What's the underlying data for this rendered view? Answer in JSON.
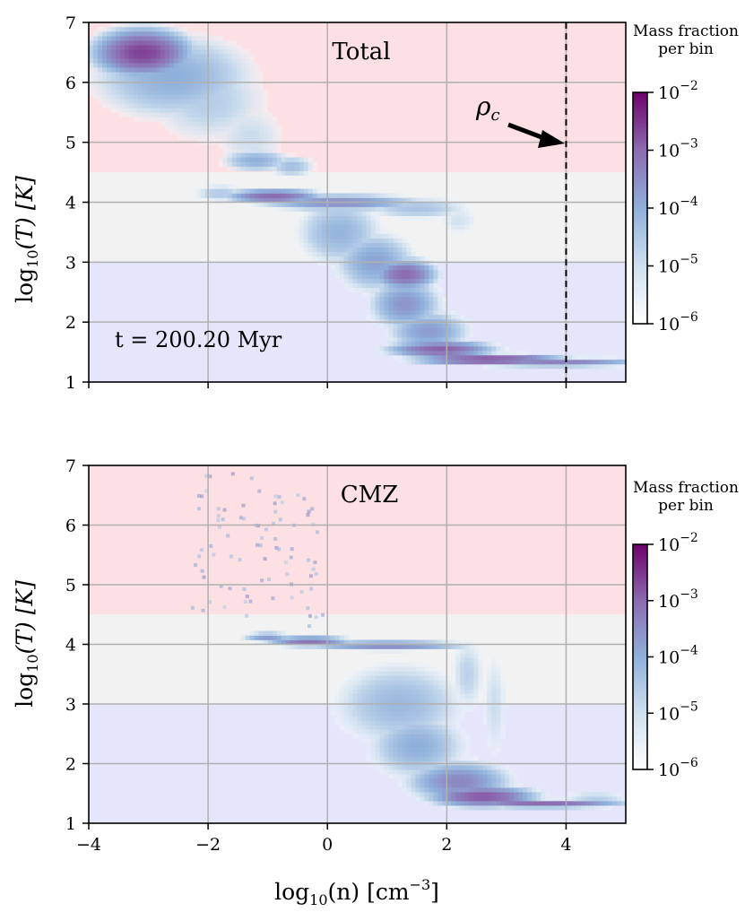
{
  "figure": {
    "xlabel_base": "log",
    "xlabel_sub": "10",
    "xlabel_var": "(n) [cm",
    "xlabel_exp": "−3",
    "xlabel_end": "]",
    "ylabel_base": "log",
    "ylabel_sub": "10",
    "ylabel_var": "(T) [K]",
    "rho_label": "ρ",
    "rho_sub": "c",
    "time_label": "t = 200.20 Myr",
    "colorbar": {
      "title_line1": "Mass fraction",
      "title_line2": "per bin",
      "tick_base": "10",
      "tick_exps": [
        "−2",
        "−3",
        "−4",
        "−5",
        "−6"
      ],
      "colors": [
        "#ffffff",
        "#cfe0ef",
        "#8fb0db",
        "#8c6bb1",
        "#6e016b"
      ]
    },
    "bands": [
      {
        "name": "hot",
        "ymin": 4.5,
        "ymax": 7,
        "color": "#fde0e3"
      },
      {
        "name": "warm",
        "ymin": 3,
        "ymax": 4.5,
        "color": "#f2f2f2"
      },
      {
        "name": "cold",
        "ymin": 1,
        "ymax": 3,
        "color": "#e5e5fb"
      }
    ]
  },
  "chart_data": [
    {
      "type": "heatmap",
      "title": "Total",
      "xlim": [
        -4,
        5
      ],
      "ylim": [
        1,
        7
      ],
      "xticks": [
        -4,
        -2,
        0,
        2,
        4
      ],
      "yticks": [
        1,
        2,
        3,
        4,
        5,
        6,
        7
      ],
      "xtick_labels": [
        "−4",
        "−2",
        "0",
        "2",
        "4"
      ],
      "ytick_labels": [
        "1",
        "2",
        "3",
        "4",
        "5",
        "6",
        "7"
      ],
      "vline_x": 4,
      "color_scale": "log",
      "clim": [
        1e-06,
        0.01
      ],
      "blobs": [
        {
          "x": -3.1,
          "y": 6.5,
          "sx": 0.45,
          "sy": 0.22,
          "v": -2.6
        },
        {
          "x": -2.6,
          "y": 6.1,
          "sx": 0.85,
          "sy": 0.45,
          "v": -4.0
        },
        {
          "x": -2.0,
          "y": 5.7,
          "sx": 0.7,
          "sy": 0.5,
          "v": -4.6
        },
        {
          "x": -1.3,
          "y": 5.1,
          "sx": 0.45,
          "sy": 0.4,
          "v": -4.9
        },
        {
          "x": -1.2,
          "y": 4.7,
          "sx": 0.35,
          "sy": 0.12,
          "v": -4.0
        },
        {
          "x": -0.6,
          "y": 4.6,
          "sx": 0.25,
          "sy": 0.12,
          "v": -4.3
        },
        {
          "x": -1.8,
          "y": 4.15,
          "sx": 0.3,
          "sy": 0.1,
          "v": -4.5
        },
        {
          "x": -0.9,
          "y": 4.1,
          "sx": 0.45,
          "sy": 0.07,
          "v": -3.0
        },
        {
          "x": 0.2,
          "y": 4.0,
          "sx": 0.8,
          "sy": 0.08,
          "v": -3.5
        },
        {
          "x": 1.5,
          "y": 3.9,
          "sx": 0.6,
          "sy": 0.12,
          "v": -4.4
        },
        {
          "x": 2.2,
          "y": 3.7,
          "sx": 0.25,
          "sy": 0.2,
          "v": -5.0
        },
        {
          "x": 0.2,
          "y": 3.5,
          "sx": 0.45,
          "sy": 0.35,
          "v": -4.1
        },
        {
          "x": 0.8,
          "y": 3.0,
          "sx": 0.4,
          "sy": 0.3,
          "v": -3.8
        },
        {
          "x": 1.3,
          "y": 2.8,
          "sx": 0.3,
          "sy": 0.15,
          "v": -3.0
        },
        {
          "x": 1.3,
          "y": 2.3,
          "sx": 0.35,
          "sy": 0.25,
          "v": -3.6
        },
        {
          "x": 1.7,
          "y": 1.85,
          "sx": 0.4,
          "sy": 0.2,
          "v": -3.7
        },
        {
          "x": 1.9,
          "y": 1.55,
          "sx": 0.5,
          "sy": 0.08,
          "v": -2.9
        },
        {
          "x": 2.7,
          "y": 1.38,
          "sx": 0.7,
          "sy": 0.05,
          "v": -2.7
        },
        {
          "x": 3.8,
          "y": 1.32,
          "sx": 0.9,
          "sy": 0.035,
          "v": -3.2
        },
        {
          "x": 4.5,
          "y": 1.35,
          "sx": 0.5,
          "sy": 0.06,
          "v": -4.8
        }
      ]
    },
    {
      "type": "heatmap",
      "title": "CMZ",
      "xlim": [
        -4,
        5
      ],
      "ylim": [
        1,
        7
      ],
      "xticks": [
        -4,
        -2,
        0,
        2,
        4
      ],
      "yticks": [
        1,
        2,
        3,
        4,
        5,
        6,
        7
      ],
      "xtick_labels": [
        "−4",
        "−2",
        "0",
        "2",
        "4"
      ],
      "ytick_labels": [
        "1",
        "2",
        "3",
        "4",
        "5",
        "6",
        "7"
      ],
      "vline_x": null,
      "color_scale": "log",
      "clim": [
        1e-06,
        0.01
      ],
      "blobs": [
        {
          "x": -1.0,
          "y": 4.12,
          "sx": 0.25,
          "sy": 0.05,
          "v": -3.7
        },
        {
          "x": -0.3,
          "y": 4.05,
          "sx": 0.4,
          "sy": 0.05,
          "v": -3.1
        },
        {
          "x": 1.0,
          "y": 3.98,
          "sx": 0.8,
          "sy": 0.05,
          "v": -3.5
        },
        {
          "x": 2.35,
          "y": 3.5,
          "sx": 0.2,
          "sy": 0.45,
          "v": -4.7
        },
        {
          "x": 2.8,
          "y": 3.0,
          "sx": 0.15,
          "sy": 0.7,
          "v": -4.9
        },
        {
          "x": 1.2,
          "y": 3.0,
          "sx": 0.7,
          "sy": 0.45,
          "v": -4.2
        },
        {
          "x": 1.5,
          "y": 2.3,
          "sx": 0.5,
          "sy": 0.35,
          "v": -4.0
        },
        {
          "x": 2.2,
          "y": 1.7,
          "sx": 0.5,
          "sy": 0.2,
          "v": -3.4
        },
        {
          "x": 2.6,
          "y": 1.45,
          "sx": 0.5,
          "sy": 0.1,
          "v": -2.8
        },
        {
          "x": 3.6,
          "y": 1.33,
          "sx": 0.8,
          "sy": 0.04,
          "v": -3.0
        },
        {
          "x": 4.5,
          "y": 1.4,
          "sx": 0.4,
          "sy": 0.1,
          "v": -4.6
        }
      ]
    }
  ]
}
